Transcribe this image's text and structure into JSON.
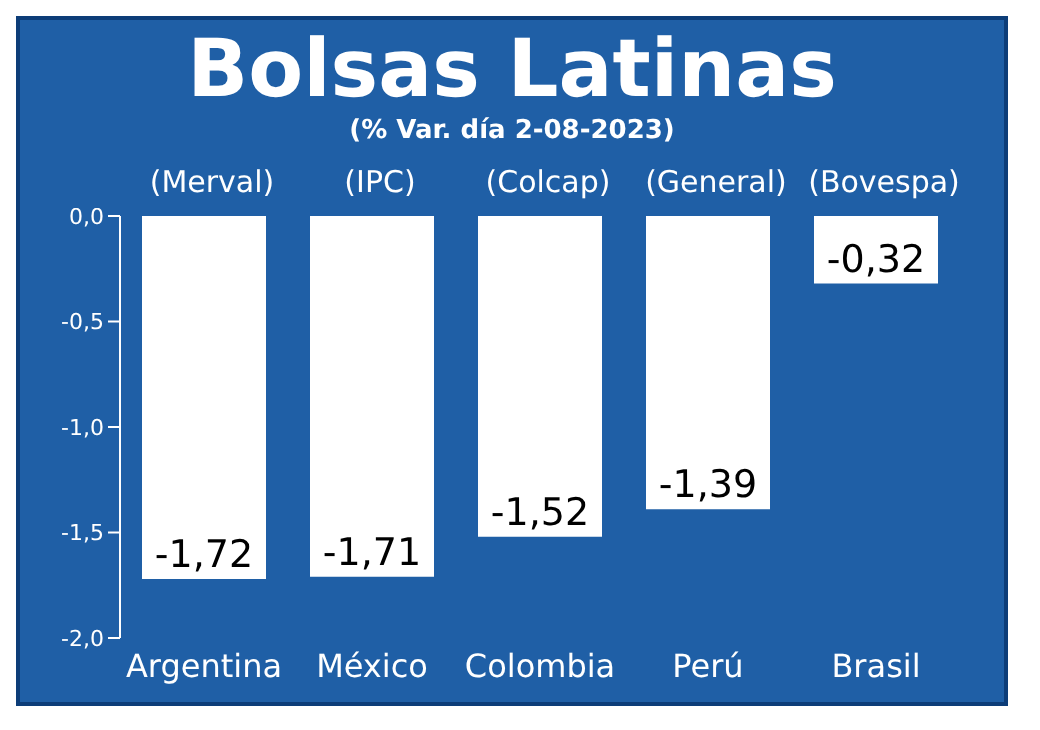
{
  "chart_data": {
    "type": "bar",
    "title": "Bolsas Latinas",
    "subtitle": "(% Var. día 2-08-2023)",
    "categories": [
      "Argentina",
      "México",
      "Colombia",
      "Perú",
      "Brasil"
    ],
    "values": [
      -1.72,
      -1.71,
      -1.52,
      -1.39,
      -0.32
    ],
    "color": "#ffffff",
    "value_labels": [
      "-1,72",
      "-1,71",
      "-1,52",
      "-1,39",
      "-0,32"
    ],
    "annotations": [
      "(Merval)",
      "(IPC)",
      "(Colcap)",
      "(General)",
      "(Bovespa)"
    ],
    "ylim": [
      -2,
      0
    ],
    "yticks": [
      {
        "value": 0,
        "label": "0,0"
      },
      {
        "value": -0.5,
        "label": "-0,5"
      },
      {
        "value": -1,
        "label": "-1,0"
      },
      {
        "value": -1.5,
        "label": "-1,5"
      },
      {
        "value": -2,
        "label": "-2,0"
      }
    ],
    "grid": false,
    "legend": false
  }
}
